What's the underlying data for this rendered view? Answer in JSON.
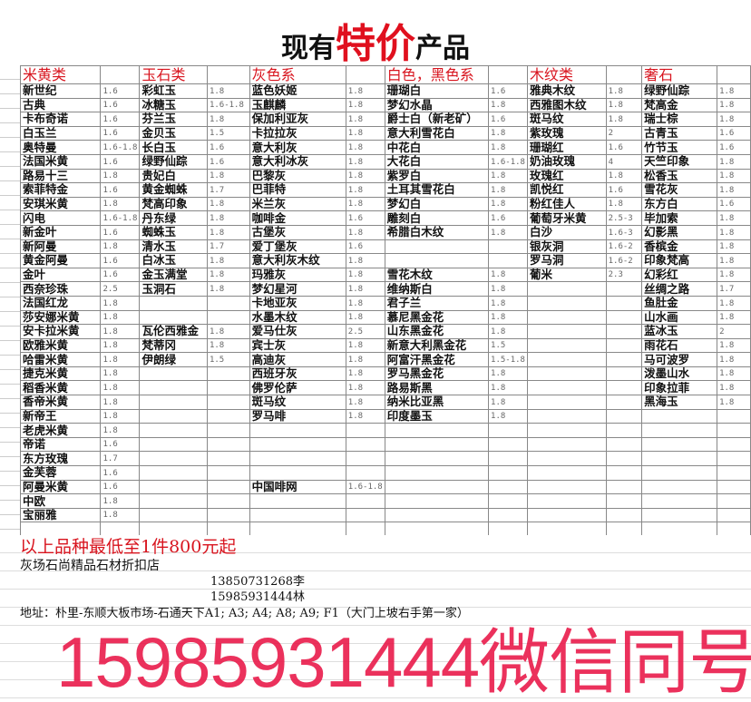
{
  "title": {
    "prefix": "现有",
    "highlight": "特价",
    "suffix": "产品"
  },
  "colors": {
    "accent_red": "#d8141e",
    "watermark": "#e81446"
  },
  "categories": [
    {
      "name": "米黄类",
      "items": [
        [
          "新世纪",
          "1.6"
        ],
        [
          "古典",
          "1.6"
        ],
        [
          "卡布奇诺",
          "1.6"
        ],
        [
          "白玉兰",
          "1.6"
        ],
        [
          "奥特曼",
          "1.6-1.8"
        ],
        [
          "法国米黄",
          "1.6"
        ],
        [
          "路易十三",
          "1.8"
        ],
        [
          "索菲特金",
          "1.6"
        ],
        [
          "安琪米黄",
          "1.8"
        ],
        [
          "闪电",
          "1.6-1.8"
        ],
        [
          "新金叶",
          "1.6"
        ],
        [
          "新阿曼",
          "1.8"
        ],
        [
          "黄金阿曼",
          "1.6"
        ],
        [
          "金叶",
          "1.6"
        ],
        [
          "西奈珍珠",
          "2.5"
        ],
        [
          "法国红龙",
          "1.8"
        ],
        [
          "莎安娜米黄",
          "1.8"
        ],
        [
          "安卡拉米黄",
          "1.8"
        ],
        [
          "欧雅米黄",
          "1.8"
        ],
        [
          "哈雷米黄",
          "1.8"
        ],
        [
          "捷克米黄",
          "1.8"
        ],
        [
          "稻香米黄",
          "1.8"
        ],
        [
          "香帝米黄",
          "1.8"
        ],
        [
          "新帝王",
          "1.8"
        ],
        [
          "老虎米黄",
          "1.8"
        ],
        [
          "帝诺",
          "1.6"
        ],
        [
          "东方玫瑰",
          "1.7"
        ],
        [
          "金芙蓉",
          "1.6"
        ],
        [
          "阿曼米黄",
          "1.6"
        ],
        [
          "中欧",
          "1.8"
        ],
        [
          "宝丽雅",
          "1.8"
        ]
      ]
    },
    {
      "name": "玉石类",
      "items": [
        [
          "彩虹玉",
          "1.8"
        ],
        [
          "冰糖玉",
          "1.6-1.8"
        ],
        [
          "芬兰玉",
          "1.8"
        ],
        [
          "金贝玉",
          "1.5"
        ],
        [
          "长白玉",
          "1.6"
        ],
        [
          "绿野仙踪",
          "1.6"
        ],
        [
          "贵妃白",
          "1.8"
        ],
        [
          "黄金蜘蛛",
          "1.7"
        ],
        [
          "梵高印象",
          "1.8"
        ],
        [
          "丹东绿",
          "1.8"
        ],
        [
          "蜘蛛玉",
          "1.8"
        ],
        [
          "清水玉",
          "1.7"
        ],
        [
          "白冰玉",
          "1.8"
        ],
        [
          "金玉满堂",
          "1.8"
        ],
        [
          "玉洞石",
          "1.8"
        ],
        [
          "",
          ""
        ],
        [
          "",
          ""
        ],
        [
          "瓦伦西雅金",
          "1.8"
        ],
        [
          "梵蒂冈",
          "1.8"
        ],
        [
          "伊朗绿",
          "1.5"
        ]
      ]
    },
    {
      "name": "灰色系",
      "items": [
        [
          "蓝色妖姬",
          "1.8"
        ],
        [
          "玉麒麟",
          "1.8"
        ],
        [
          "保加利亚灰",
          "1.8"
        ],
        [
          "卡拉拉灰",
          "1.8"
        ],
        [
          "意大利灰",
          "1.8"
        ],
        [
          "意大利冰灰",
          "1.8"
        ],
        [
          "巴黎灰",
          "1.8"
        ],
        [
          "巴菲特",
          "1.8"
        ],
        [
          "米兰灰",
          "1.8"
        ],
        [
          "咖啡金",
          "1.6"
        ],
        [
          "古堡灰",
          "1.8"
        ],
        [
          "爱丁堡灰",
          "1.6"
        ],
        [
          "意大利灰木纹",
          "1.8"
        ],
        [
          "玛雅灰",
          "1.8"
        ],
        [
          "梦幻星河",
          "1.8"
        ],
        [
          "卡地亚灰",
          "1.8"
        ],
        [
          "水墨木纹",
          "1.8"
        ],
        [
          "爱马仕灰",
          "2.5"
        ],
        [
          "宾士灰",
          "1.8"
        ],
        [
          "高迪灰",
          "1.8"
        ],
        [
          "西班牙灰",
          "1.8"
        ],
        [
          "佛罗伦萨",
          "1.8"
        ],
        [
          "斑马纹",
          "1.8"
        ],
        [
          "罗马啡",
          "1.8"
        ],
        [
          "",
          ""
        ],
        [
          "",
          ""
        ],
        [
          "",
          ""
        ],
        [
          "",
          ""
        ],
        [
          "中国啡网",
          "1.6-1.8"
        ]
      ]
    },
    {
      "name": "白色，黑色系",
      "items": [
        [
          "珊瑚白",
          "1.6"
        ],
        [
          "梦幻水晶",
          "1.8"
        ],
        [
          "爵士白（新老矿）",
          "1.6"
        ],
        [
          "意大利雪花白",
          "1.8"
        ],
        [
          "中花白",
          "1.8"
        ],
        [
          "大花白",
          "1.6-1.8"
        ],
        [
          "紫罗白",
          "1.8"
        ],
        [
          "土耳其雪花白",
          "1.8"
        ],
        [
          "梦幻白",
          "1.8"
        ],
        [
          "雕刻白",
          "1.6"
        ],
        [
          "希腊白木纹",
          "1.8"
        ],
        [
          "",
          ""
        ],
        [
          "",
          ""
        ],
        [
          "雪花木纹",
          "1.8"
        ],
        [
          "维纳斯白",
          "1.8"
        ],
        [
          "君子兰",
          "1.8"
        ],
        [
          "慕尼黑金花",
          "1.8"
        ],
        [
          "山东黑金花",
          "1.8"
        ],
        [
          "新意大利黑金花",
          "1.5"
        ],
        [
          "阿富汗黑金花",
          "1.5-1.8"
        ],
        [
          "罗马黑金花",
          "1.8"
        ],
        [
          "路易斯黑",
          "1.8"
        ],
        [
          "纳米比亚黑",
          "1.8"
        ],
        [
          "印度墨玉",
          "1.8"
        ]
      ]
    },
    {
      "name": "木纹类",
      "items": [
        [
          "雅典木纹",
          "1.8"
        ],
        [
          "西雅图木纹",
          "1.8"
        ],
        [
          "斑马纹",
          "1.8"
        ],
        [
          "紫玫瑰",
          "2"
        ],
        [
          "珊瑚红",
          "1.6"
        ],
        [
          "奶油玫瑰",
          "4"
        ],
        [
          "玫瑰红",
          "1.8"
        ],
        [
          "凯悦红",
          "1.6"
        ],
        [
          "粉红佳人",
          "1.8"
        ],
        [
          "葡萄牙米黄",
          "2.5-3"
        ],
        [
          "白沙",
          "1.6-3"
        ],
        [
          "银灰洞",
          "1.6-2"
        ],
        [
          "罗马洞",
          "1.6-2"
        ],
        [
          "葡米",
          "2.3"
        ]
      ]
    },
    {
      "name": "奢石",
      "items": [
        [
          "绿野仙踪",
          "1.8"
        ],
        [
          "梵高金",
          "1.8"
        ],
        [
          "瑞士棕",
          "1.8"
        ],
        [
          "古青玉",
          "1.6"
        ],
        [
          "竹节玉",
          "1.6"
        ],
        [
          "天竺印象",
          "1.8"
        ],
        [
          "松香玉",
          "1.8"
        ],
        [
          "雪花灰",
          "1.8"
        ],
        [
          "东方白",
          "1.6"
        ],
        [
          "毕加索",
          "1.8"
        ],
        [
          "幻影黑",
          "1.8"
        ],
        [
          "香槟金",
          "1.8"
        ],
        [
          "印象梵高",
          "1.8"
        ],
        [
          "幻彩红",
          "1.8"
        ],
        [
          "丝绸之路",
          "1.7"
        ],
        [
          "鱼肚金",
          "1.8"
        ],
        [
          "山水画",
          "1.8"
        ],
        [
          "蓝冰玉",
          "2"
        ],
        [
          "雨花石",
          "1.8"
        ],
        [
          "马可波罗",
          "1.8"
        ],
        [
          "泼墨山水",
          "1.8"
        ],
        [
          "印象拉菲",
          "1.8"
        ],
        [
          "黑海玉",
          "1.8"
        ]
      ]
    }
  ],
  "footer": {
    "note": "以上品种最低至1件800元起",
    "shop": "灰场石尚精品石材折扣店",
    "phone1": "13850731268李",
    "phone2": "15985931444林",
    "address": "地址：朴里-东顺大板市场-石通天下A1; A3; A4; A8; A9; F1（大门上坡右手第一家）",
    "watermark": "15985931444微信同号"
  }
}
